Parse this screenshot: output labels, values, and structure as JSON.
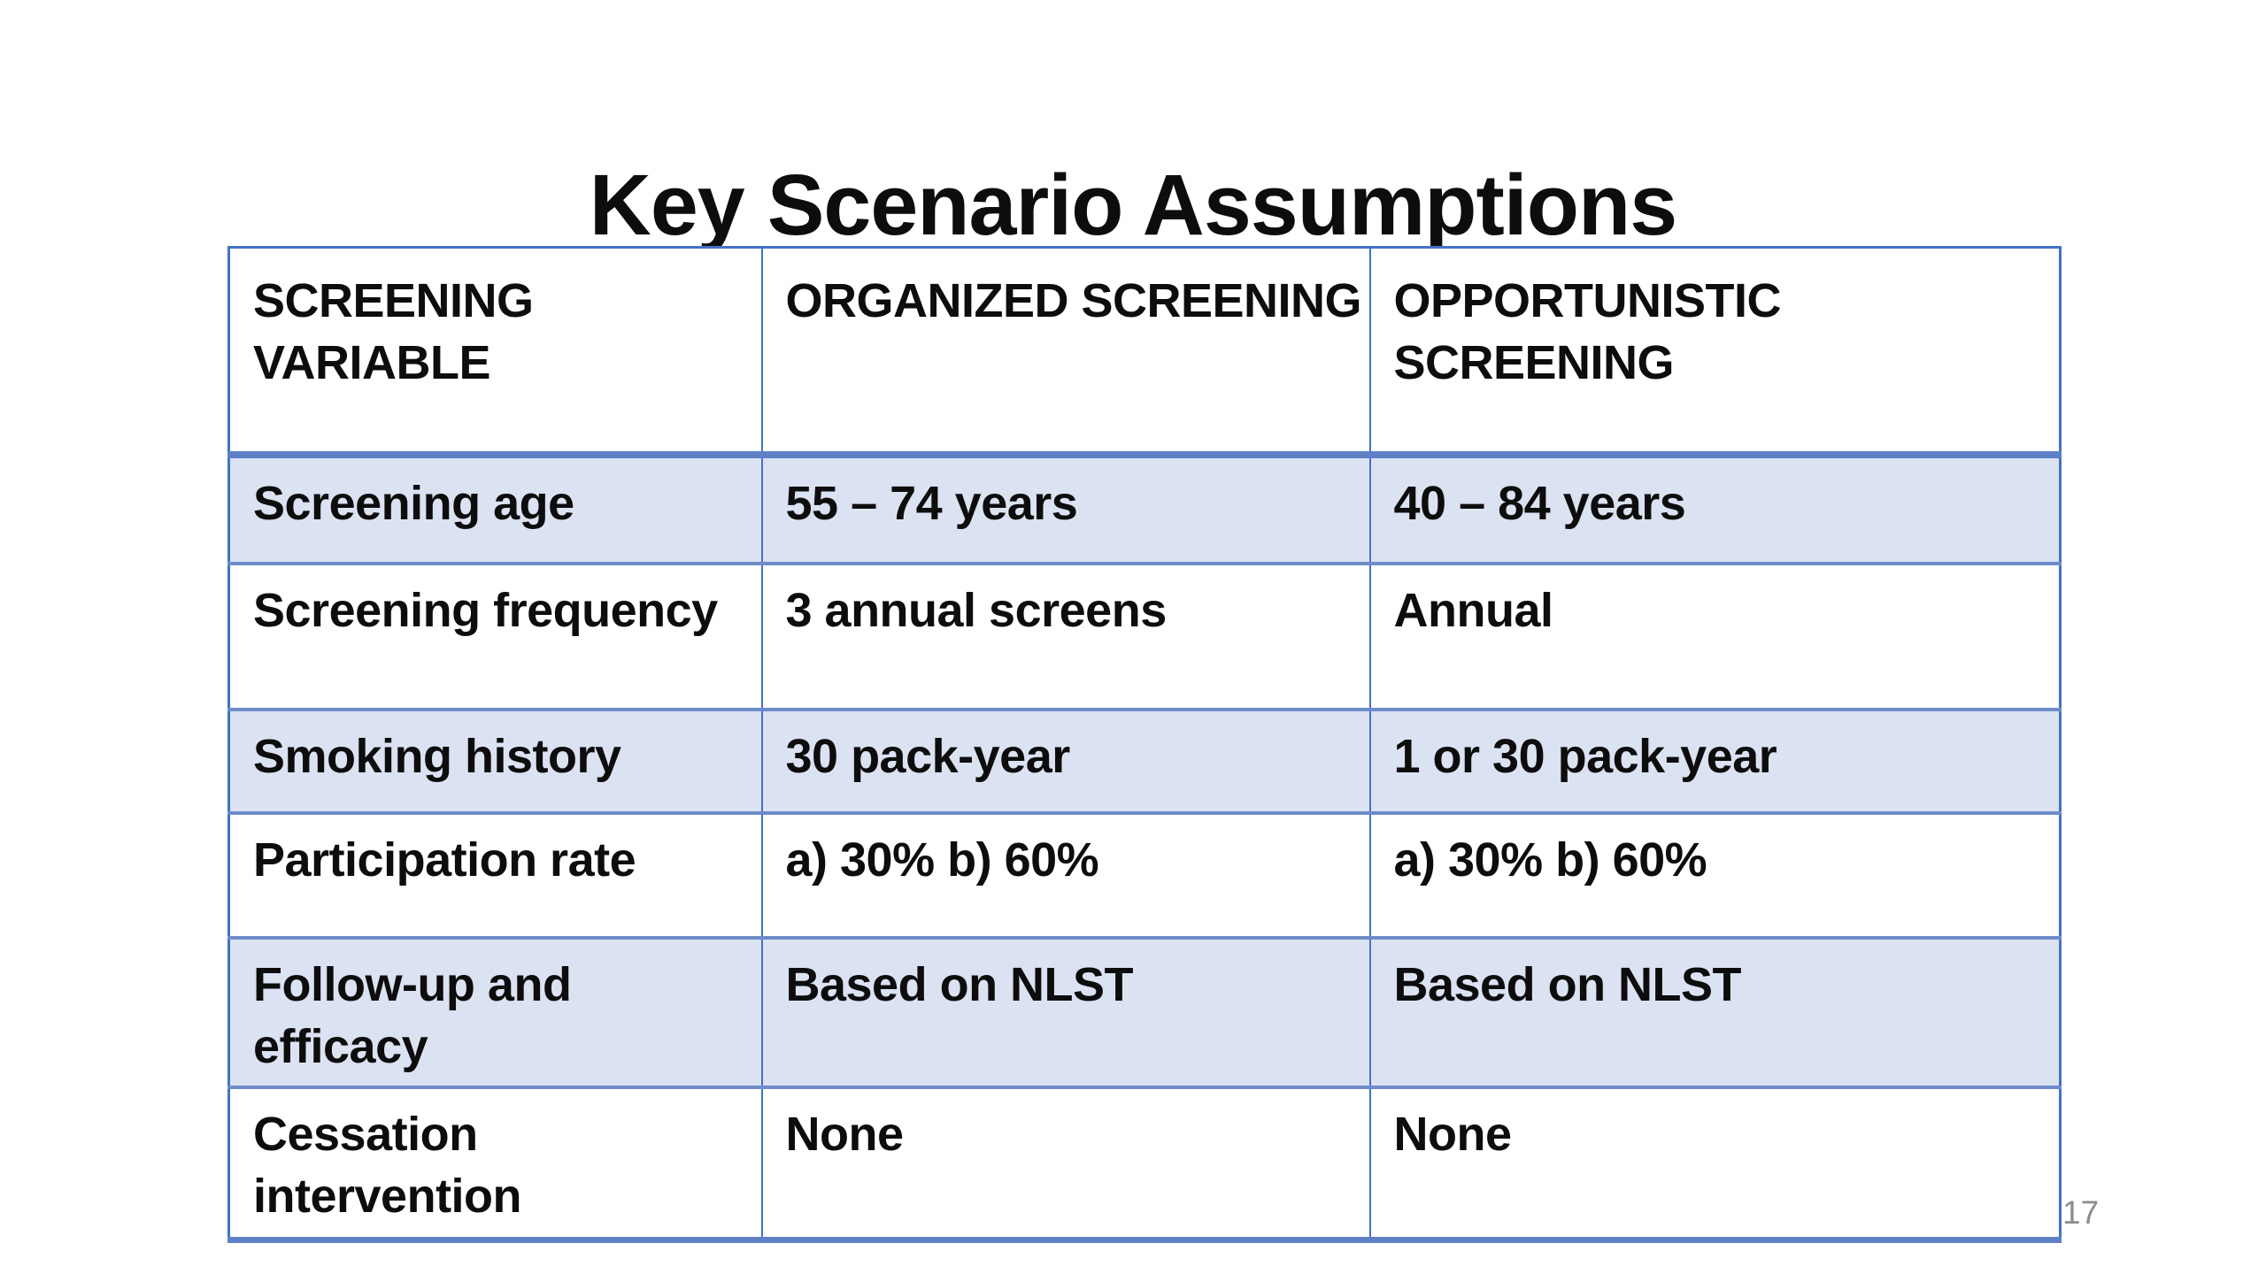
{
  "slide": {
    "title": "Key Scenario Assumptions",
    "page_number": "17"
  },
  "table": {
    "columns": [
      "SCREENING\nVARIABLE",
      "ORGANIZED SCREENING",
      "OPPORTUNISTIC\nSCREENING"
    ],
    "rows": [
      {
        "cells": [
          "Screening age",
          "55 – 74 years",
          "40 – 84 years"
        ]
      },
      {
        "cells": [
          "Screening frequency",
          "3 annual screens",
          "Annual"
        ]
      },
      {
        "cells": [
          "Smoking history",
          "30 pack-year",
          "1 or 30 pack-year"
        ]
      },
      {
        "cells": [
          "Participation rate",
          "a) 30% b) 60%",
          "a) 30% b) 60%"
        ]
      },
      {
        "cells": [
          "Follow-up and\nefficacy",
          "Based on NLST",
          "Based on NLST"
        ]
      },
      {
        "cells": [
          "Cessation\nintervention",
          "None",
          "None"
        ]
      }
    ]
  },
  "colors": {
    "table_border": "#4472C4",
    "row_separator": "#6E8CC9",
    "header_rule": "#5D80C7",
    "banded_row_fill": "#DBE2F2",
    "text": "#0D0D0D",
    "page_number": "#8C8C8C",
    "background": "#FFFFFF"
  }
}
